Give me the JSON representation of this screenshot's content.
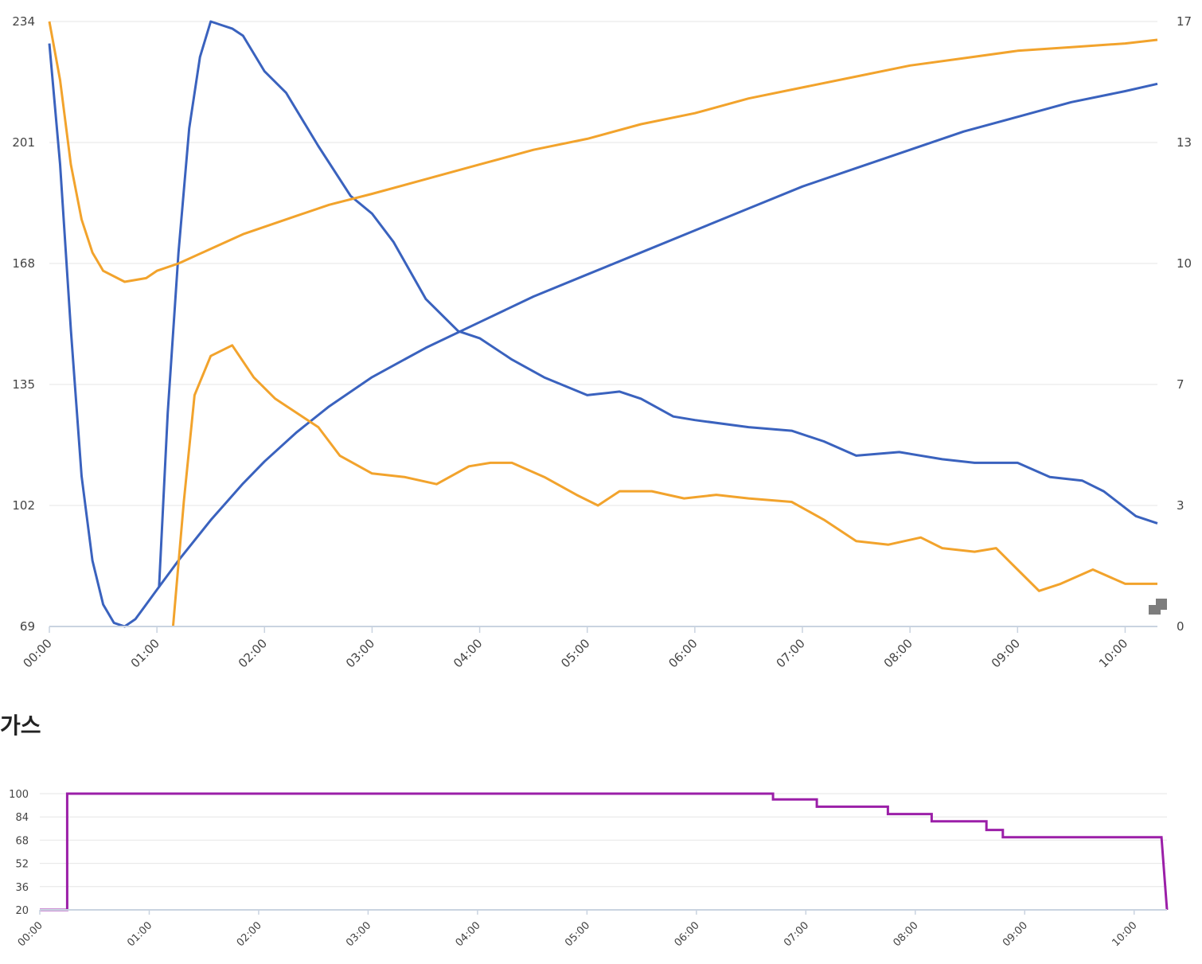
{
  "charts": {
    "main": {
      "type": "line",
      "x_ticks": [
        "00:00",
        "01:00",
        "02:00",
        "03:00",
        "04:00",
        "05:00",
        "06:00",
        "07:00",
        "08:00",
        "09:00",
        "10:00"
      ],
      "y_left_ticks": [
        "69",
        "102",
        "135",
        "168",
        "201",
        "234"
      ],
      "y_right_ticks": [
        "0",
        "3",
        "7",
        "10",
        "13",
        "17"
      ],
      "y_left_range": [
        69,
        234
      ],
      "y_right_range": [
        0,
        17
      ],
      "x_range_hours": [
        0,
        10.3
      ],
      "colors": {
        "blue": "#3a62be",
        "orange": "#f2a32c"
      }
    },
    "gas": {
      "title": "가스",
      "type": "line",
      "x_ticks": [
        "00:00",
        "01:00",
        "02:00",
        "03:00",
        "04:00",
        "05:00",
        "06:00",
        "07:00",
        "08:00",
        "09:00",
        "10:00"
      ],
      "y_ticks": [
        "20",
        "36",
        "52",
        "68",
        "84",
        "100"
      ],
      "y_range": [
        20,
        100
      ],
      "x_range_hours": [
        0,
        10.3
      ],
      "color": "#9b1fa8"
    }
  },
  "chart_data": [
    {
      "type": "line",
      "x_unit": "hours since 00:00",
      "y_left_range": [
        69,
        234
      ],
      "y_right_range": [
        0,
        17
      ],
      "series": [
        {
          "axis": "left",
          "color": "#3a62be",
          "points": [
            [
              0,
              228
            ],
            [
              0.1,
              195
            ],
            [
              0.2,
              150
            ],
            [
              0.3,
              110
            ],
            [
              0.4,
              87
            ],
            [
              0.5,
              75
            ],
            [
              0.6,
              70
            ],
            [
              0.7,
              69
            ],
            [
              0.8,
              71
            ],
            [
              0.9,
              75
            ],
            [
              1.0,
              79
            ],
            [
              1.2,
              87
            ],
            [
              1.5,
              98
            ],
            [
              1.8,
              108
            ],
            [
              2.0,
              114
            ],
            [
              2.3,
              122
            ],
            [
              2.6,
              129
            ],
            [
              3.0,
              137
            ],
            [
              3.5,
              145
            ],
            [
              4.0,
              152
            ],
            [
              4.5,
              159
            ],
            [
              5.0,
              165
            ],
            [
              5.5,
              171
            ],
            [
              6.0,
              177
            ],
            [
              6.5,
              183
            ],
            [
              7.0,
              189
            ],
            [
              7.5,
              194
            ],
            [
              8.0,
              199
            ],
            [
              8.5,
              204
            ],
            [
              9.0,
              208
            ],
            [
              9.5,
              212
            ],
            [
              10.0,
              215
            ],
            [
              10.3,
              217
            ]
          ]
        },
        {
          "axis": "right",
          "color": "#3a62be",
          "points": [
            [
              1.02,
              1.1
            ],
            [
              1.1,
              6.0
            ],
            [
              1.2,
              10.5
            ],
            [
              1.3,
              14.0
            ],
            [
              1.4,
              16.0
            ],
            [
              1.5,
              17.0
            ],
            [
              1.6,
              16.9
            ],
            [
              1.7,
              16.8
            ],
            [
              1.8,
              16.6
            ],
            [
              2.0,
              15.6
            ],
            [
              2.2,
              15.0
            ],
            [
              2.5,
              13.5
            ],
            [
              2.8,
              12.1
            ],
            [
              3.0,
              11.6
            ],
            [
              3.2,
              10.8
            ],
            [
              3.5,
              9.2
            ],
            [
              3.8,
              8.3
            ],
            [
              4.0,
              8.1
            ],
            [
              4.3,
              7.5
            ],
            [
              4.6,
              7.0
            ],
            [
              5.0,
              6.5
            ],
            [
              5.3,
              6.6
            ],
            [
              5.5,
              6.4
            ],
            [
              5.8,
              5.9
            ],
            [
              6.0,
              5.8
            ],
            [
              6.5,
              5.6
            ],
            [
              6.9,
              5.5
            ],
            [
              7.2,
              5.2
            ],
            [
              7.5,
              4.8
            ],
            [
              7.9,
              4.9
            ],
            [
              8.3,
              4.7
            ],
            [
              8.6,
              4.6
            ],
            [
              9.0,
              4.6
            ],
            [
              9.3,
              4.2
            ],
            [
              9.6,
              4.1
            ],
            [
              9.8,
              3.8
            ],
            [
              10.1,
              3.1
            ],
            [
              10.3,
              2.9
            ]
          ]
        },
        {
          "axis": "left",
          "color": "#f2a32c",
          "points": [
            [
              0,
              234
            ],
            [
              0.1,
              218
            ],
            [
              0.2,
              195
            ],
            [
              0.3,
              180
            ],
            [
              0.4,
              171
            ],
            [
              0.5,
              166
            ],
            [
              0.7,
              163
            ],
            [
              0.9,
              164
            ],
            [
              1.0,
              166
            ],
            [
              1.2,
              168
            ],
            [
              1.5,
              172
            ],
            [
              1.8,
              176
            ],
            [
              2.0,
              178
            ],
            [
              2.3,
              181
            ],
            [
              2.6,
              184
            ],
            [
              3.0,
              187
            ],
            [
              3.5,
              191
            ],
            [
              4.0,
              195
            ],
            [
              4.5,
              199
            ],
            [
              5.0,
              202
            ],
            [
              5.5,
              206
            ],
            [
              6.0,
              209
            ],
            [
              6.5,
              213
            ],
            [
              7.0,
              216
            ],
            [
              7.5,
              219
            ],
            [
              8.0,
              222
            ],
            [
              8.5,
              224
            ],
            [
              9.0,
              226
            ],
            [
              9.5,
              227
            ],
            [
              10.0,
              228
            ],
            [
              10.3,
              229
            ]
          ]
        },
        {
          "axis": "right",
          "color": "#f2a32c",
          "points": [
            [
              1.15,
              0
            ],
            [
              1.25,
              3.5
            ],
            [
              1.35,
              6.5
            ],
            [
              1.5,
              7.6
            ],
            [
              1.7,
              7.9
            ],
            [
              1.9,
              7.0
            ],
            [
              2.1,
              6.4
            ],
            [
              2.3,
              6.0
            ],
            [
              2.5,
              5.6
            ],
            [
              2.7,
              4.8
            ],
            [
              3.0,
              4.3
            ],
            [
              3.3,
              4.2
            ],
            [
              3.6,
              4.0
            ],
            [
              3.9,
              4.5
            ],
            [
              4.1,
              4.6
            ],
            [
              4.3,
              4.6
            ],
            [
              4.6,
              4.2
            ],
            [
              4.9,
              3.7
            ],
            [
              5.1,
              3.4
            ],
            [
              5.3,
              3.8
            ],
            [
              5.6,
              3.8
            ],
            [
              5.9,
              3.6
            ],
            [
              6.2,
              3.7
            ],
            [
              6.5,
              3.6
            ],
            [
              6.9,
              3.5
            ],
            [
              7.2,
              3.0
            ],
            [
              7.5,
              2.4
            ],
            [
              7.8,
              2.3
            ],
            [
              8.1,
              2.5
            ],
            [
              8.3,
              2.2
            ],
            [
              8.6,
              2.1
            ],
            [
              8.8,
              2.2
            ],
            [
              9.0,
              1.6
            ],
            [
              9.2,
              1.0
            ],
            [
              9.4,
              1.2
            ],
            [
              9.7,
              1.6
            ],
            [
              10.0,
              1.2
            ],
            [
              10.3,
              1.2
            ]
          ]
        }
      ]
    },
    {
      "type": "line",
      "title": "가스",
      "x_unit": "hours since 00:00",
      "y_range": [
        20,
        100
      ],
      "series": [
        {
          "color": "#9b1fa8",
          "points": [
            [
              0,
              20
            ],
            [
              0.25,
              20
            ],
            [
              0.25,
              100
            ],
            [
              6.7,
              100
            ],
            [
              6.7,
              96
            ],
            [
              7.1,
              96
            ],
            [
              7.1,
              91
            ],
            [
              7.75,
              91
            ],
            [
              7.75,
              86
            ],
            [
              8.15,
              86
            ],
            [
              8.15,
              81
            ],
            [
              8.65,
              81
            ],
            [
              8.65,
              75
            ],
            [
              8.8,
              75
            ],
            [
              8.8,
              70
            ],
            [
              10.25,
              70
            ],
            [
              10.3,
              20
            ]
          ]
        }
      ]
    }
  ]
}
